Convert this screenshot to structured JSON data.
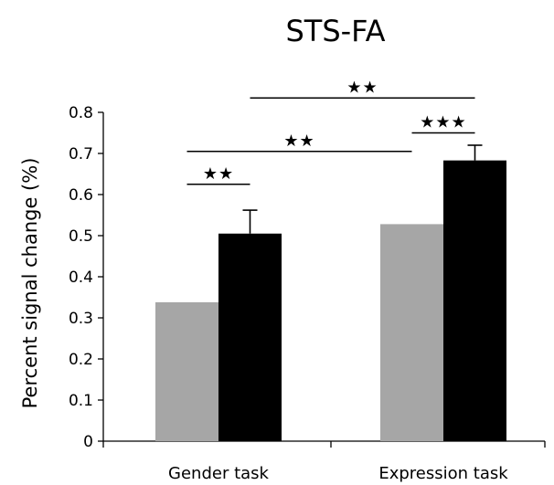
{
  "chart_data": {
    "type": "bar",
    "title": "STS-FA",
    "ylabel": "Percent signal change (%)",
    "xlabel": "",
    "ylim": [
      0,
      0.8
    ],
    "yticks": [
      0,
      0.1,
      0.2,
      0.3,
      0.4,
      0.5,
      0.6,
      0.7,
      0.8
    ],
    "ytick_labels": [
      "0",
      "0.1",
      "0.2",
      "0.3",
      "0.4",
      "0.5",
      "0.6",
      "0.7",
      "0.8"
    ],
    "categories": [
      "Gender task",
      "Expression task"
    ],
    "series": [
      {
        "color": "#a6a6a6",
        "values": [
          0.338,
          0.528
        ],
        "errors": [
          0,
          0
        ]
      },
      {
        "color": "#000000",
        "values": [
          0.505,
          0.683
        ],
        "errors": [
          0.057,
          0.037
        ]
      }
    ],
    "grid": false,
    "legend": "none",
    "significance": [
      {
        "from": [
          0,
          0
        ],
        "to": [
          0,
          1
        ],
        "level": 0.625,
        "label": "★★"
      },
      {
        "from": [
          0,
          0
        ],
        "to": [
          1,
          0
        ],
        "level": 0.705,
        "label": "★★"
      },
      {
        "from": [
          1,
          0
        ],
        "to": [
          1,
          1
        ],
        "level": 0.75,
        "label": "★★★"
      },
      {
        "from": [
          0,
          1
        ],
        "to": [
          1,
          1
        ],
        "level": 0.835,
        "label": "★★"
      }
    ]
  }
}
